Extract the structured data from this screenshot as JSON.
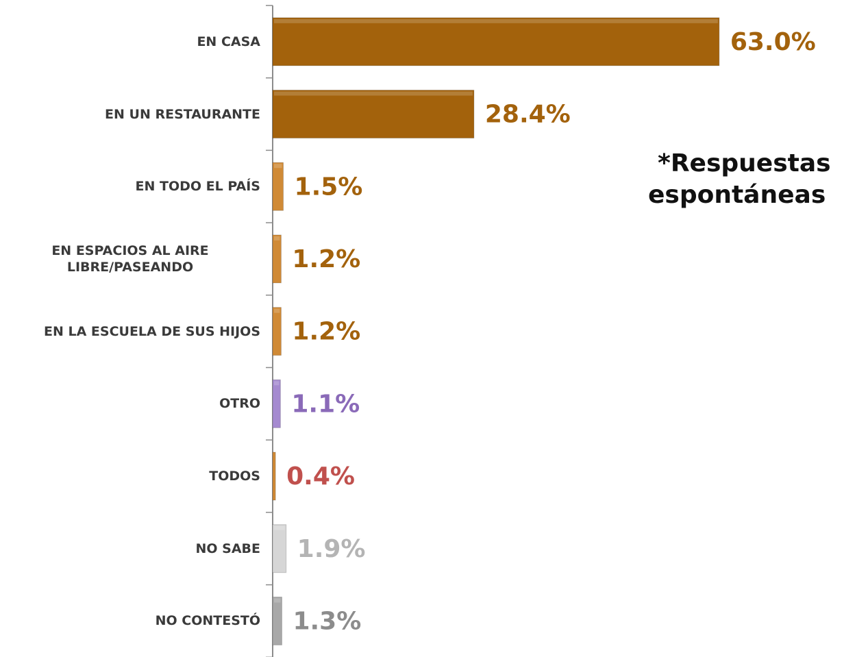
{
  "chart_data": {
    "type": "bar",
    "orientation": "horizontal",
    "categories": [
      "EN CASA",
      "EN UN RESTAURANTE",
      "EN TODO EL PAÍS",
      "EN ESPACIOS AL AIRE LIBRE/PASEANDO",
      "EN LA ESCUELA DE SUS HIJOS",
      "OTRO",
      "TODOS",
      "NO SABE",
      "NO CONTESTÓ"
    ],
    "values": [
      63.0,
      28.4,
      1.5,
      1.2,
      1.2,
      1.1,
      0.4,
      1.9,
      1.3
    ],
    "value_labels": [
      "63.0%",
      "28.4%",
      "1.5%",
      "1.2%",
      "1.2%",
      "1.1%",
      "0.4%",
      "1.9%",
      "1.3%"
    ],
    "colors": [
      "#a3620c",
      "#a3620c",
      "#d08a36",
      "#d08a36",
      "#d08a36",
      "#a58ad0",
      "#d08a36",
      "#d6d6d6",
      "#a8a8a8"
    ],
    "label_colors": [
      "#a3620c",
      "#a3620c",
      "#a3620c",
      "#a3620c",
      "#a3620c",
      "#8a6ab8",
      "#c0504d",
      "#b4b4b4",
      "#8c8c8c"
    ],
    "xlim": [
      0,
      75
    ],
    "annotation": [
      "*Respuestas",
      "espontáneas"
    ]
  }
}
